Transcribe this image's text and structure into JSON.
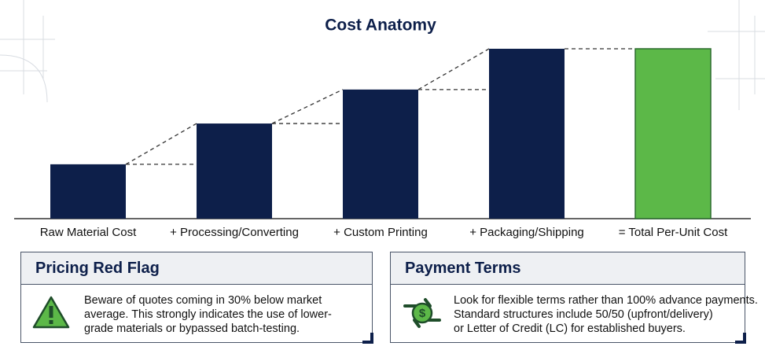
{
  "chart_data": {
    "type": "bar",
    "title": "Cost Anatomy",
    "categories": [
      "Raw Material Cost",
      "+ Processing/Converting",
      "+ Custom Printing",
      "+ Packaging/Shipping",
      "= Total Per-Unit Cost"
    ],
    "values": [
      32,
      56,
      76,
      100,
      100
    ],
    "colors": [
      "#0d1f4a",
      "#0d1f4a",
      "#0d1f4a",
      "#0d1f4a",
      "#5cb848"
    ],
    "ylim": [
      0,
      100
    ]
  },
  "panels": [
    {
      "title": "Pricing Red Flag",
      "lines": [
        "Beware of quotes coming in 30% below market",
        "average. This strongly indicates the use of lower-",
        "grade materials or bypassed batch-testing."
      ]
    },
    {
      "title": "Payment Terms",
      "lines": [
        "Look for flexible terms rather than 100% advance payments.",
        "Standard structures include 50/50 (upfront/delivery)",
        "or Letter of Credit (LC) for established buyers."
      ]
    }
  ]
}
